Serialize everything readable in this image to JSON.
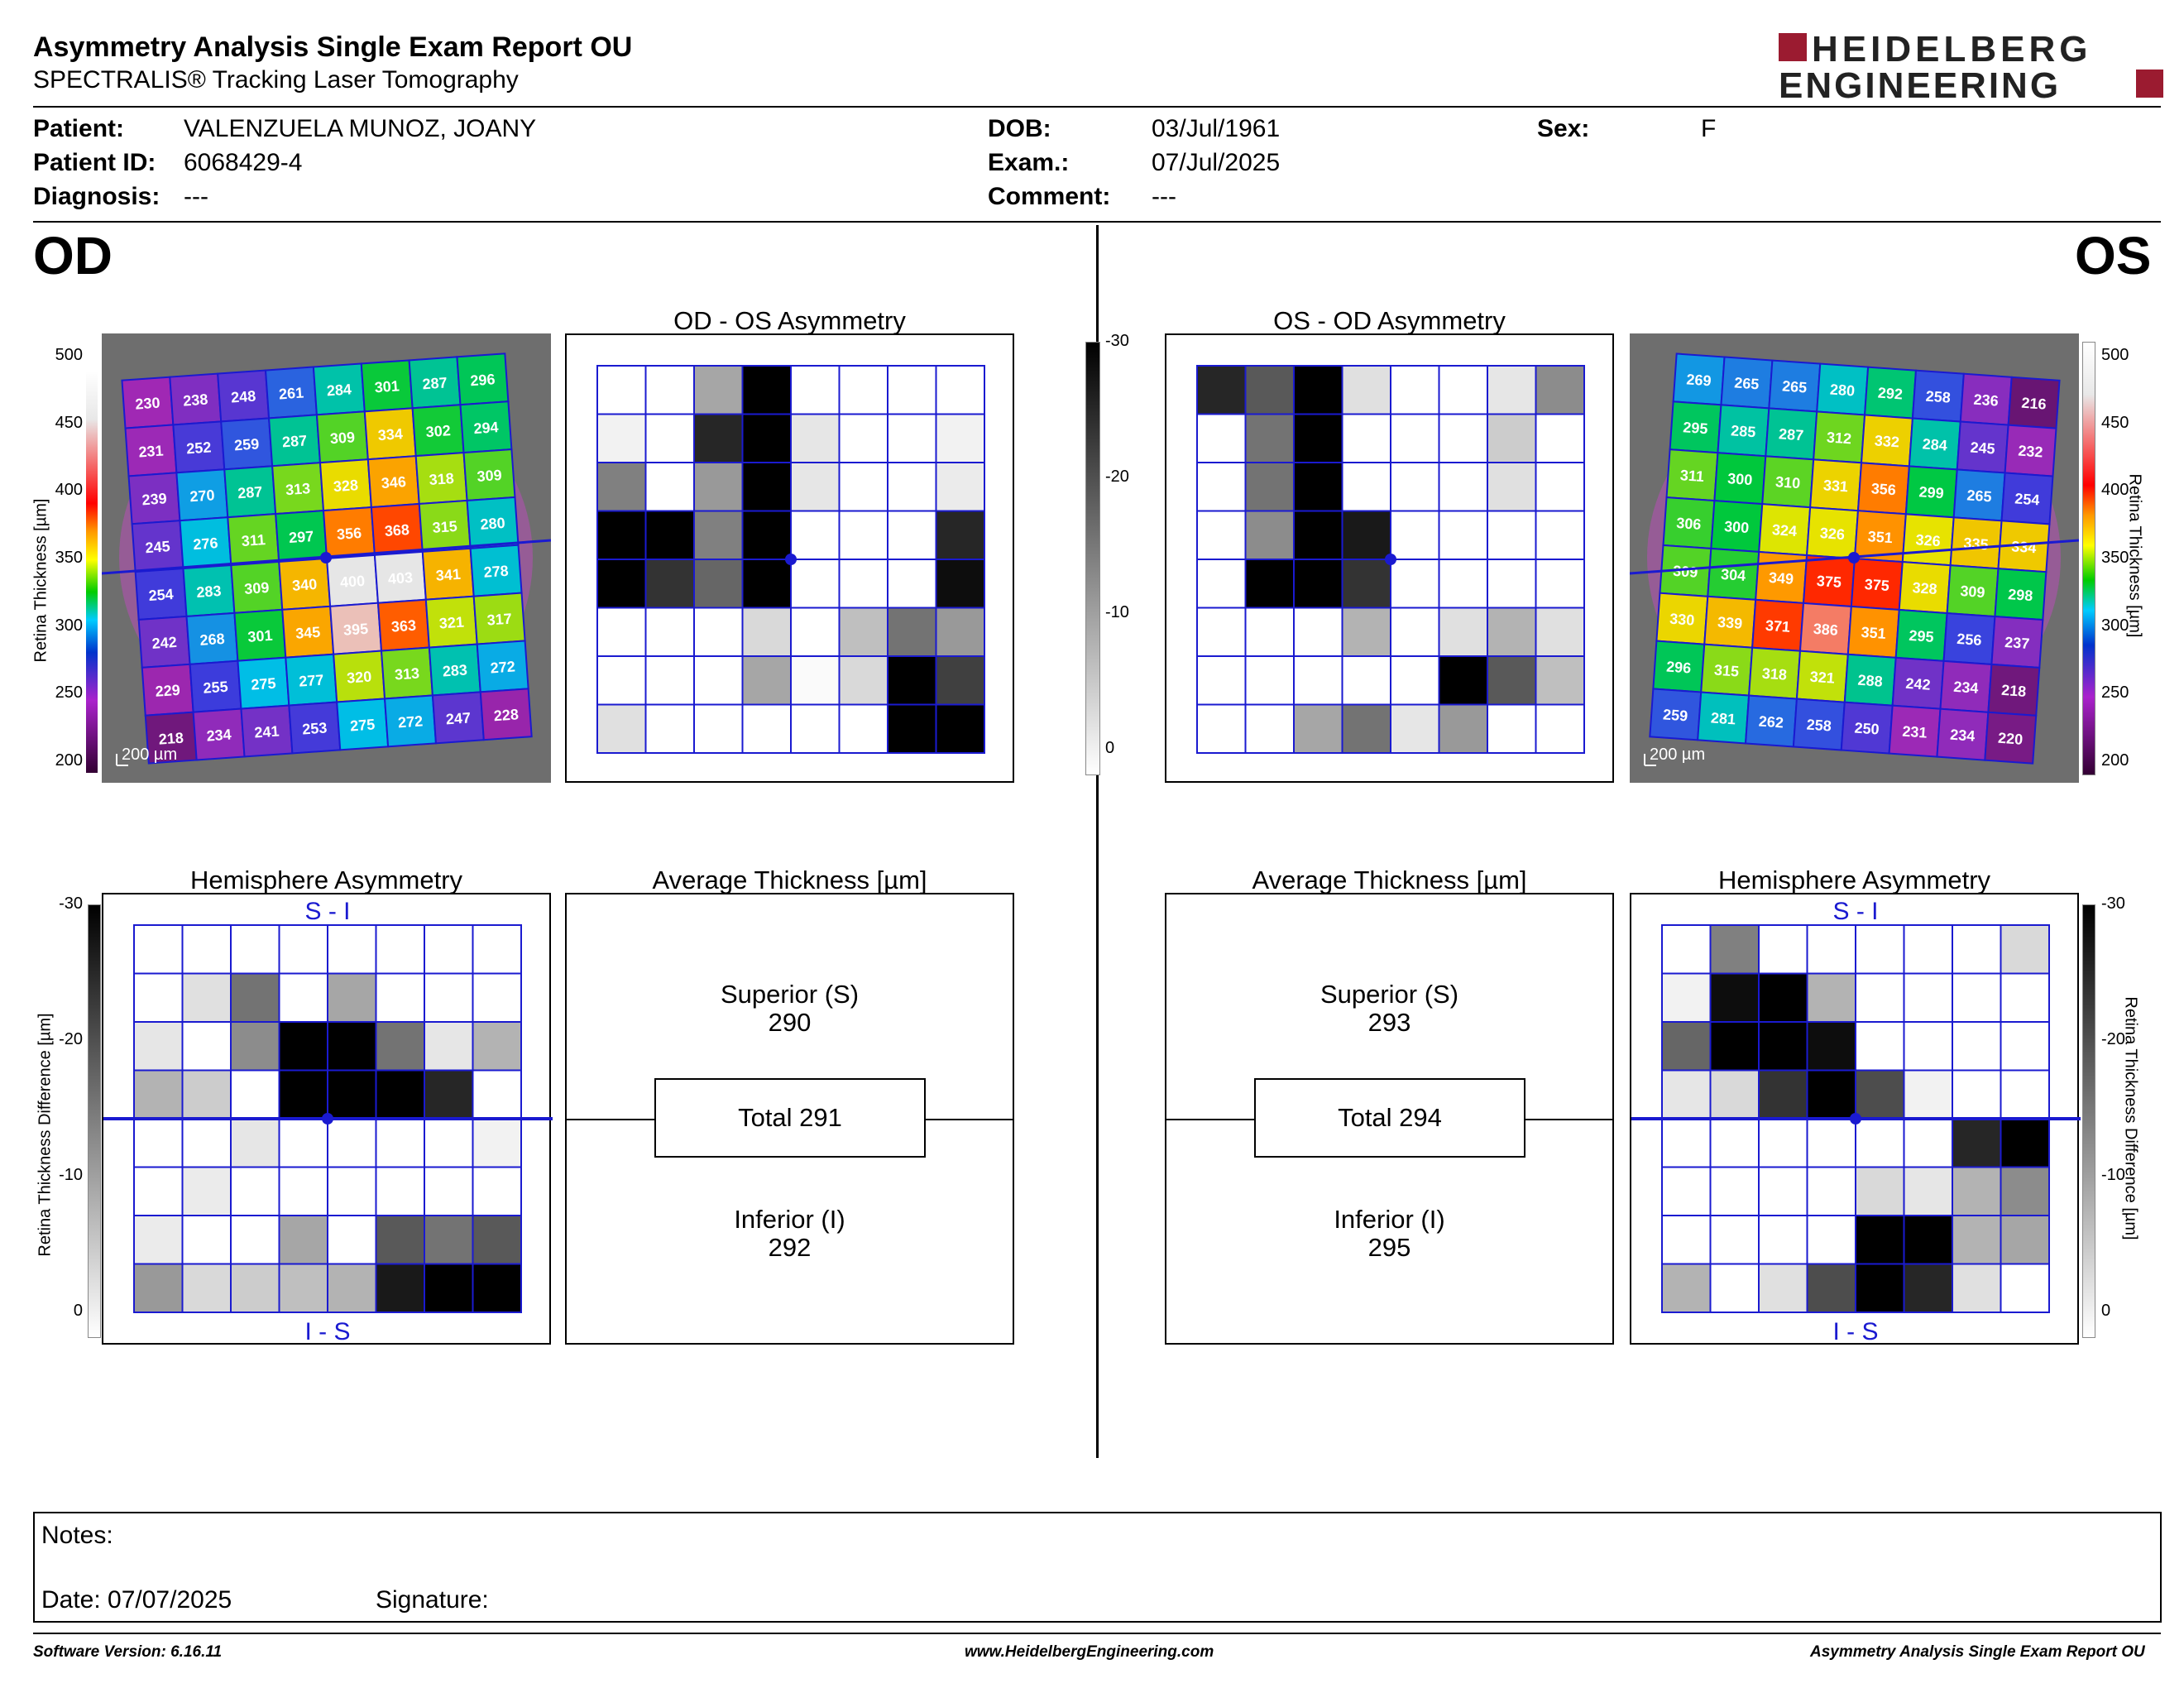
{
  "header": {
    "title": "Asymmetry Analysis Single Exam Report OU",
    "subtitle": "SPECTRALIS® Tracking Laser Tomography",
    "logo_line1": "HEIDELBERG",
    "logo_line2": "ENGINEERING",
    "brand_color": "#9b1b30"
  },
  "patient": {
    "patient_label": "Patient:",
    "patient": "VALENZUELA MUNOZ, JOANY",
    "id_label": "Patient ID:",
    "id": "6068429-4",
    "diagnosis_label": "Diagnosis:",
    "diagnosis": "---",
    "dob_label": "DOB:",
    "dob": "03/Jul/1961",
    "exam_label": "Exam.:",
    "exam": "07/Jul/2025",
    "comment_label": "Comment:",
    "comment": "---",
    "sex_label": "Sex:",
    "sex": "F"
  },
  "od": {
    "eye": "OD",
    "asym_title": "OD - OS Asymmetry",
    "hemi_title": "Hemisphere Asymmetry",
    "avg_title": "Average Thickness [µm]",
    "superior_label": "Superior (S)",
    "superior": "290",
    "total": "Total 291",
    "inferior_label": "Inferior (I)",
    "inferior": "292",
    "hemi_top": "S - I",
    "hemi_bottom": "I - S",
    "scale_label": "200 µm",
    "thickness_grid": [
      [
        230,
        238,
        248,
        261,
        284,
        301,
        287,
        296
      ],
      [
        231,
        252,
        259,
        287,
        309,
        334,
        302,
        294
      ],
      [
        239,
        270,
        287,
        313,
        328,
        346,
        318,
        309
      ],
      [
        245,
        276,
        311,
        297,
        356,
        368,
        315,
        280
      ],
      [
        254,
        283,
        309,
        340,
        400,
        403,
        341,
        278
      ],
      [
        242,
        268,
        301,
        345,
        395,
        363,
        321,
        317
      ],
      [
        229,
        255,
        275,
        277,
        320,
        313,
        283,
        272
      ],
      [
        218,
        234,
        241,
        253,
        275,
        272,
        247,
        228
      ]
    ],
    "asym_grid": [
      [
        0,
        0,
        0.35,
        1,
        0,
        0,
        0,
        0
      ],
      [
        0.05,
        0,
        0.85,
        1,
        0.1,
        0,
        0,
        0.05
      ],
      [
        0.5,
        0,
        0.4,
        1,
        0.1,
        0,
        0,
        0.08
      ],
      [
        1,
        1,
        0.5,
        1,
        0,
        0,
        0,
        0.85
      ],
      [
        1,
        0.8,
        0.6,
        1,
        0,
        0,
        0,
        0.95
      ],
      [
        0,
        0,
        0,
        0.15,
        0,
        0.25,
        0.55,
        0.4
      ],
      [
        0,
        0,
        0,
        0.35,
        0.02,
        0.15,
        1,
        0.75
      ],
      [
        0.12,
        0,
        0,
        0,
        0,
        0,
        1,
        1
      ]
    ],
    "hemi_grid": [
      [
        0,
        0,
        0,
        0,
        0,
        0,
        0,
        0
      ],
      [
        0,
        0.12,
        0.55,
        0,
        0.35,
        0,
        0,
        0
      ],
      [
        0.1,
        0,
        0.45,
        1,
        1,
        0.55,
        0.1,
        0.3
      ],
      [
        0.3,
        0.2,
        0,
        1,
        1,
        1,
        0.85,
        0
      ],
      [
        0,
        0,
        0.1,
        0,
        0,
        0,
        0,
        0.05
      ],
      [
        0,
        0.08,
        0,
        0,
        0,
        0,
        0,
        0
      ],
      [
        0.08,
        0,
        0,
        0.35,
        0,
        0.65,
        0.55,
        0.65
      ],
      [
        0.4,
        0.15,
        0.2,
        0.25,
        0.3,
        0.9,
        1,
        1
      ]
    ]
  },
  "os": {
    "eye": "OS",
    "asym_title": "OS - OD Asymmetry",
    "hemi_title": "Hemisphere Asymmetry",
    "avg_title": "Average Thickness [µm]",
    "superior_label": "Superior (S)",
    "superior": "293",
    "total": "Total 294",
    "inferior_label": "Inferior (I)",
    "inferior": "295",
    "hemi_top": "S - I",
    "hemi_bottom": "I - S",
    "scale_label": "200 µm",
    "thickness_grid": [
      [
        269,
        265,
        265,
        280,
        292,
        258,
        236,
        216
      ],
      [
        295,
        285,
        287,
        312,
        332,
        284,
        245,
        232
      ],
      [
        311,
        300,
        310,
        331,
        356,
        299,
        265,
        254
      ],
      [
        306,
        300,
        324,
        326,
        351,
        326,
        335,
        334
      ],
      [
        309,
        304,
        349,
        375,
        375,
        328,
        309,
        298
      ],
      [
        330,
        339,
        371,
        386,
        351,
        295,
        256,
        237
      ],
      [
        296,
        315,
        318,
        321,
        288,
        242,
        234,
        218
      ],
      [
        259,
        281,
        262,
        258,
        250,
        231,
        234,
        220
      ]
    ],
    "asym_grid": [
      [
        0.85,
        0.65,
        1,
        0.12,
        0,
        0,
        0.1,
        0.45
      ],
      [
        0,
        0.55,
        1,
        0,
        0,
        0,
        0.2,
        0
      ],
      [
        0,
        0.55,
        1,
        0,
        0,
        0,
        0.12,
        0
      ],
      [
        0,
        0.45,
        1,
        0.9,
        0,
        0,
        0,
        0
      ],
      [
        0,
        1,
        1,
        0.8,
        0,
        0,
        0,
        0
      ],
      [
        0,
        0,
        0,
        0.3,
        0,
        0.12,
        0.3,
        0.12
      ],
      [
        0,
        0,
        0,
        0,
        0,
        1,
        0.65,
        0.25
      ],
      [
        0,
        0,
        0.35,
        0.55,
        0.1,
        0.4,
        0,
        0
      ]
    ],
    "hemi_grid": [
      [
        0,
        0.5,
        0,
        0,
        0,
        0,
        0,
        0.15
      ],
      [
        0.05,
        0.95,
        1,
        0.3,
        0,
        0,
        0,
        0
      ],
      [
        0.6,
        1,
        1,
        0.95,
        0,
        0,
        0,
        0
      ],
      [
        0.1,
        0.15,
        0.8,
        1,
        0.7,
        0.05,
        0,
        0
      ],
      [
        0,
        0,
        0,
        0,
        0,
        0,
        0.85,
        1
      ],
      [
        0,
        0,
        0,
        0,
        0.15,
        0.1,
        0.3,
        0.45
      ],
      [
        0,
        0,
        0,
        0,
        1,
        1,
        0.3,
        0.35
      ],
      [
        0.3,
        0,
        0.12,
        0.7,
        1,
        0.85,
        0.12,
        0
      ]
    ]
  },
  "thickness_scale": {
    "label": "Retina Thickness [µm]",
    "ticks": [
      "500",
      "450",
      "400",
      "350",
      "300",
      "250",
      "200"
    ]
  },
  "diff_scale": {
    "label": "Retina Thickness Difference [µm]",
    "ticks": [
      "-30",
      "-20",
      "-10",
      "0"
    ]
  },
  "notes": {
    "notes_label": "Notes:",
    "date_label": "Date: 07/07/2025",
    "signature_label": "Signature:"
  },
  "footer": {
    "version": "Software Version: 6.16.11",
    "website": "www.HeidelbergEngineering.com",
    "report": "Asymmetry Analysis Single Exam Report OU"
  }
}
